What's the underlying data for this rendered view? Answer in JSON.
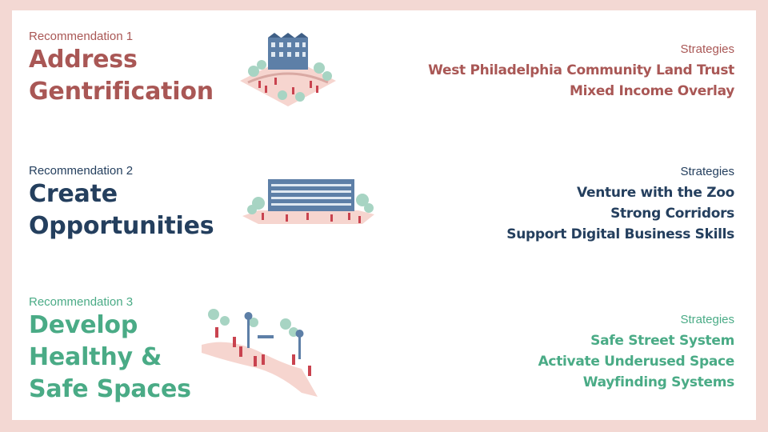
{
  "recommendations": [
    {
      "label": "Recommendation 1",
      "title_lines": [
        "Address",
        "Gentrification"
      ],
      "strategies_heading": "Strategies",
      "strategies": [
        "West Philadelphia Community Land Trust",
        "Mixed Income Overlay"
      ],
      "color": "#a95755"
    },
    {
      "label": "Recommendation 2",
      "title_lines": [
        "Create",
        "Opportunities"
      ],
      "strategies_heading": "Strategies",
      "strategies": [
        "Venture with the Zoo",
        "Strong Corridors",
        "Support Digital Business Skills"
      ],
      "color": "#243f5e"
    },
    {
      "label": "Recommendation 3",
      "title_lines": [
        "Develop",
        "Healthy &",
        "Safe Spaces"
      ],
      "strategies_heading": "Strategies",
      "strategies": [
        "Safe Street System",
        "Activate Underused Space",
        "Wayfinding Systems"
      ],
      "color": "#4aab86"
    }
  ],
  "colors": {
    "background": "#f3d8d3",
    "card": "#ffffff",
    "people": "#c9434f",
    "ground": "#f6d5cf",
    "trees": "#a7d4c3",
    "building": "#5d7fa7"
  },
  "illustrations": [
    "rowhouse-illustration",
    "building-illustration",
    "street-illustration"
  ]
}
